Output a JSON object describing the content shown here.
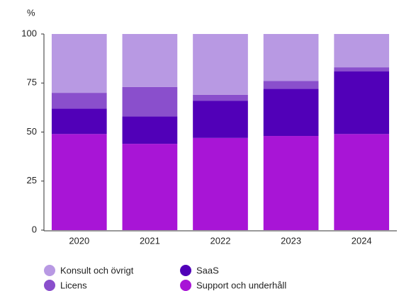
{
  "chart_data": {
    "type": "stacked_bar",
    "ylabel": "%",
    "categories": [
      "2020",
      "2021",
      "2022",
      "2023",
      "2024"
    ],
    "series": [
      {
        "name": "Konsult och övrigt",
        "color": "#b899e3",
        "values": [
          30,
          27,
          31,
          24,
          17
        ]
      },
      {
        "name": "Licens",
        "color": "#8a4fcc",
        "values": [
          8,
          15,
          3,
          4,
          2
        ]
      },
      {
        "name": "SaaS",
        "color": "#5100b8",
        "values": [
          13,
          14,
          19,
          24,
          32
        ]
      },
      {
        "name": "Support och underhåll",
        "color": "#a815d6",
        "values": [
          49,
          44,
          47,
          48,
          49
        ]
      }
    ],
    "ylim": [
      0,
      100
    ],
    "yticks": [
      0,
      25,
      50,
      75,
      100
    ],
    "grid": false
  }
}
